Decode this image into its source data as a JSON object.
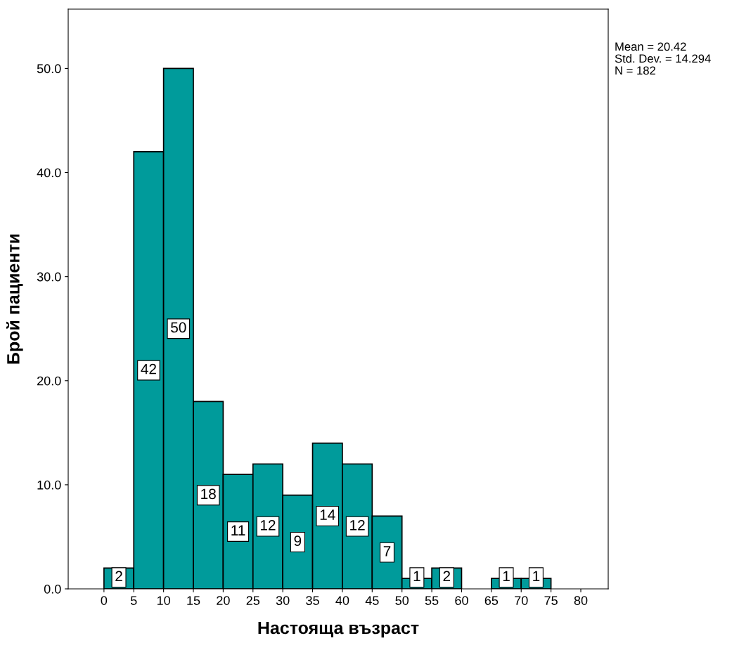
{
  "chart_data": {
    "type": "histogram",
    "xlabel": "Настояща възраст",
    "ylabel": "Брой пациенти",
    "bins": [
      0,
      5,
      10,
      15,
      20,
      25,
      30,
      35,
      40,
      45,
      50,
      55,
      60,
      65,
      70,
      75
    ],
    "values": [
      2,
      42,
      50,
      18,
      11,
      12,
      9,
      14,
      12,
      7,
      1,
      2,
      0,
      1,
      1
    ],
    "value_labels": [
      "2",
      "42",
      "50",
      "18",
      "11",
      "12",
      "9",
      "14",
      "12",
      "7",
      "1",
      "2",
      null,
      "1",
      "1"
    ],
    "color": "#009b9b",
    "xlim": [
      -6,
      84.6
    ],
    "ylim": [
      0,
      55.7
    ],
    "xticks": [
      0,
      5,
      10,
      15,
      20,
      25,
      30,
      35,
      40,
      45,
      50,
      55,
      60,
      65,
      70,
      75,
      80
    ],
    "yticks": [
      {
        "value": 0,
        "label": "0.0"
      },
      {
        "value": 10,
        "label": "10.0"
      },
      {
        "value": 20,
        "label": "20.0"
      },
      {
        "value": 30,
        "label": "30.0"
      },
      {
        "value": 40,
        "label": "40.0"
      },
      {
        "value": 50,
        "label": "50.0"
      }
    ],
    "grid": false,
    "annotations": [
      "Mean = 20.42",
      "Std. Dev. = 14.294",
      "N = 182"
    ]
  }
}
